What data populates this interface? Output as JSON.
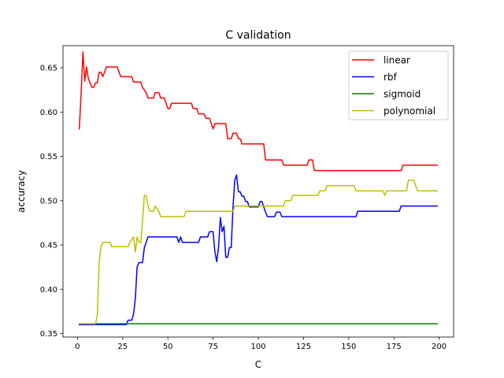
{
  "chart_data": {
    "type": "line",
    "title": "C validation",
    "xlabel": "C",
    "ylabel": "accuracy",
    "xlim": [
      -8,
      208
    ],
    "ylim": [
      0.346,
      0.675
    ],
    "xticks": [
      0,
      25,
      50,
      75,
      100,
      125,
      150,
      175,
      200
    ],
    "yticks": [
      0.35,
      0.4,
      0.45,
      0.5,
      0.55,
      0.6,
      0.65
    ],
    "ytick_labels": [
      "0.35",
      "0.40",
      "0.45",
      "0.50",
      "0.55",
      "0.60",
      "0.65"
    ],
    "grid": false,
    "legend_position": "top-right",
    "series": [
      {
        "name": "linear",
        "color": "#ff0000",
        "points": [
          [
            1,
            0.581
          ],
          [
            2,
            0.62
          ],
          [
            3,
            0.668
          ],
          [
            4,
            0.635
          ],
          [
            5,
            0.651
          ],
          [
            6,
            0.638
          ],
          [
            7,
            0.633
          ],
          [
            8,
            0.628
          ],
          [
            9,
            0.628
          ],
          [
            10,
            0.633
          ],
          [
            11,
            0.633
          ],
          [
            12,
            0.645
          ],
          [
            13,
            0.645
          ],
          [
            14,
            0.64
          ],
          [
            15,
            0.645
          ],
          [
            16,
            0.651
          ],
          [
            20,
            0.651
          ],
          [
            22,
            0.651
          ],
          [
            23,
            0.645
          ],
          [
            24,
            0.64
          ],
          [
            30,
            0.64
          ],
          [
            31,
            0.634
          ],
          [
            35,
            0.634
          ],
          [
            36,
            0.628
          ],
          [
            38,
            0.622
          ],
          [
            39,
            0.616
          ],
          [
            42,
            0.616
          ],
          [
            43,
            0.622
          ],
          [
            45,
            0.622
          ],
          [
            46,
            0.616
          ],
          [
            48,
            0.616
          ],
          [
            49,
            0.61
          ],
          [
            50,
            0.604
          ],
          [
            51,
            0.604
          ],
          [
            52,
            0.61
          ],
          [
            63,
            0.61
          ],
          [
            64,
            0.604
          ],
          [
            66,
            0.604
          ],
          [
            67,
            0.598
          ],
          [
            70,
            0.598
          ],
          [
            71,
            0.593
          ],
          [
            73,
            0.593
          ],
          [
            74,
            0.587
          ],
          [
            75,
            0.581
          ],
          [
            76,
            0.587
          ],
          [
            82,
            0.587
          ],
          [
            83,
            0.57
          ],
          [
            85,
            0.57
          ],
          [
            86,
            0.576
          ],
          [
            88,
            0.576
          ],
          [
            89,
            0.57
          ],
          [
            90,
            0.57
          ],
          [
            91,
            0.564
          ],
          [
            103,
            0.564
          ],
          [
            104,
            0.546
          ],
          [
            113,
            0.546
          ],
          [
            114,
            0.54
          ],
          [
            127,
            0.54
          ],
          [
            128,
            0.546
          ],
          [
            130,
            0.546
          ],
          [
            131,
            0.534
          ],
          [
            179,
            0.534
          ],
          [
            180,
            0.54
          ],
          [
            199,
            0.54
          ]
        ]
      },
      {
        "name": "rbf",
        "color": "#0000ff",
        "points": [
          [
            1,
            0.36
          ],
          [
            26,
            0.36
          ],
          [
            27,
            0.36
          ],
          [
            28,
            0.365
          ],
          [
            30,
            0.365
          ],
          [
            31,
            0.372
          ],
          [
            32,
            0.39
          ],
          [
            33,
            0.425
          ],
          [
            34,
            0.43
          ],
          [
            36,
            0.43
          ],
          [
            37,
            0.447
          ],
          [
            38,
            0.453
          ],
          [
            39,
            0.459
          ],
          [
            55,
            0.459
          ],
          [
            56,
            0.453
          ],
          [
            57,
            0.459
          ],
          [
            58,
            0.453
          ],
          [
            67,
            0.453
          ],
          [
            68,
            0.459
          ],
          [
            72,
            0.459
          ],
          [
            73,
            0.465
          ],
          [
            75,
            0.465
          ],
          [
            76,
            0.442
          ],
          [
            77,
            0.431
          ],
          [
            78,
            0.447
          ],
          [
            79,
            0.481
          ],
          [
            80,
            0.465
          ],
          [
            81,
            0.471
          ],
          [
            82,
            0.436
          ],
          [
            83,
            0.436
          ],
          [
            84,
            0.447
          ],
          [
            85,
            0.447
          ],
          [
            86,
            0.493
          ],
          [
            87,
            0.523
          ],
          [
            88,
            0.529
          ],
          [
            89,
            0.51
          ],
          [
            90,
            0.51
          ],
          [
            91,
            0.505
          ],
          [
            92,
            0.505
          ],
          [
            93,
            0.499
          ],
          [
            94,
            0.499
          ],
          [
            95,
            0.493
          ],
          [
            100,
            0.493
          ],
          [
            101,
            0.499
          ],
          [
            102,
            0.499
          ],
          [
            103,
            0.493
          ],
          [
            104,
            0.487
          ],
          [
            105,
            0.482
          ],
          [
            109,
            0.482
          ],
          [
            110,
            0.487
          ],
          [
            112,
            0.487
          ],
          [
            113,
            0.482
          ],
          [
            154,
            0.482
          ],
          [
            155,
            0.488
          ],
          [
            178,
            0.488
          ],
          [
            179,
            0.494
          ],
          [
            199,
            0.494
          ]
        ]
      },
      {
        "name": "sigmoid",
        "color": "#008000",
        "points": [
          [
            1,
            0.361
          ],
          [
            199,
            0.361
          ]
        ]
      },
      {
        "name": "polynomial",
        "color": "#bfbf00",
        "points": [
          [
            1,
            0.361
          ],
          [
            10,
            0.361
          ],
          [
            11,
            0.371
          ],
          [
            12,
            0.43
          ],
          [
            13,
            0.448
          ],
          [
            14,
            0.453
          ],
          [
            18,
            0.453
          ],
          [
            19,
            0.448
          ],
          [
            28,
            0.448
          ],
          [
            29,
            0.453
          ],
          [
            31,
            0.459
          ],
          [
            32,
            0.442
          ],
          [
            33,
            0.459
          ],
          [
            34,
            0.453
          ],
          [
            35,
            0.453
          ],
          [
            36,
            0.477
          ],
          [
            37,
            0.506
          ],
          [
            38,
            0.506
          ],
          [
            39,
            0.494
          ],
          [
            40,
            0.488
          ],
          [
            42,
            0.488
          ],
          [
            43,
            0.494
          ],
          [
            45,
            0.488
          ],
          [
            46,
            0.482
          ],
          [
            59,
            0.482
          ],
          [
            60,
            0.488
          ],
          [
            86,
            0.488
          ],
          [
            87,
            0.494
          ],
          [
            114,
            0.494
          ],
          [
            115,
            0.5
          ],
          [
            118,
            0.5
          ],
          [
            119,
            0.506
          ],
          [
            133,
            0.506
          ],
          [
            134,
            0.511
          ],
          [
            137,
            0.511
          ],
          [
            138,
            0.517
          ],
          [
            153,
            0.517
          ],
          [
            154,
            0.511
          ],
          [
            169,
            0.511
          ],
          [
            170,
            0.506
          ],
          [
            171,
            0.511
          ],
          [
            182,
            0.511
          ],
          [
            183,
            0.523
          ],
          [
            186,
            0.523
          ],
          [
            187,
            0.517
          ],
          [
            188,
            0.511
          ],
          [
            199,
            0.511
          ]
        ]
      }
    ]
  }
}
